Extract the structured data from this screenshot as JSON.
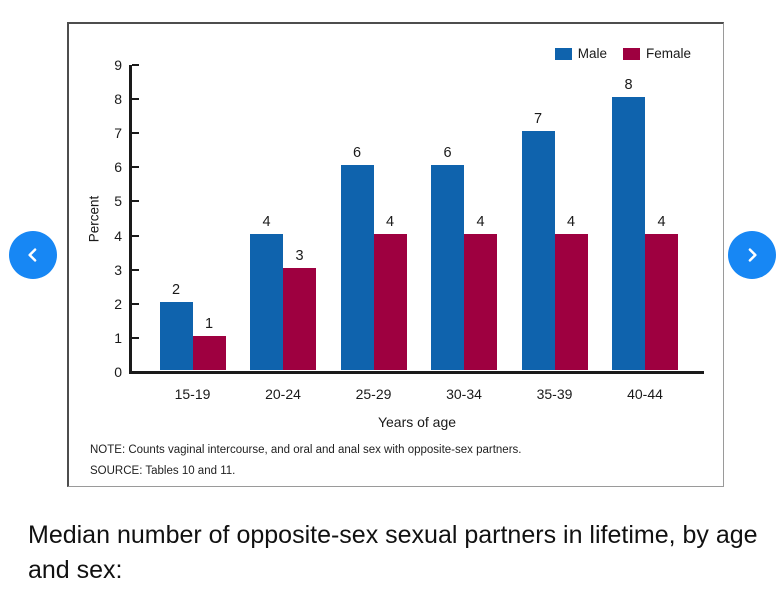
{
  "nav": {
    "prev_label": "Previous slide",
    "next_label": "Next slide",
    "button_color": "#1787f4"
  },
  "chart_data": {
    "type": "bar",
    "title": "",
    "categories": [
      "15-19",
      "20-24",
      "25-29",
      "30-34",
      "35-39",
      "40-44"
    ],
    "series": [
      {
        "name": "Male",
        "color": "#0f63ad",
        "values": [
          2,
          4,
          6,
          6,
          7,
          8
        ]
      },
      {
        "name": "Female",
        "color": "#9e0040",
        "values": [
          1,
          3,
          4,
          4,
          4,
          4
        ]
      }
    ],
    "xlabel": "Years of age",
    "ylabel": "Percent",
    "ylim": [
      0,
      9
    ],
    "ytick_step": 1,
    "grid": false,
    "legend_position": "top-right",
    "note": "NOTE: Counts vaginal intercourse, and oral and anal sex with opposite-sex partners.",
    "source": "SOURCE: Tables 10 and 11."
  },
  "caption": "Median number of opposite-sex sexual partners in lifetime, by age and sex:"
}
